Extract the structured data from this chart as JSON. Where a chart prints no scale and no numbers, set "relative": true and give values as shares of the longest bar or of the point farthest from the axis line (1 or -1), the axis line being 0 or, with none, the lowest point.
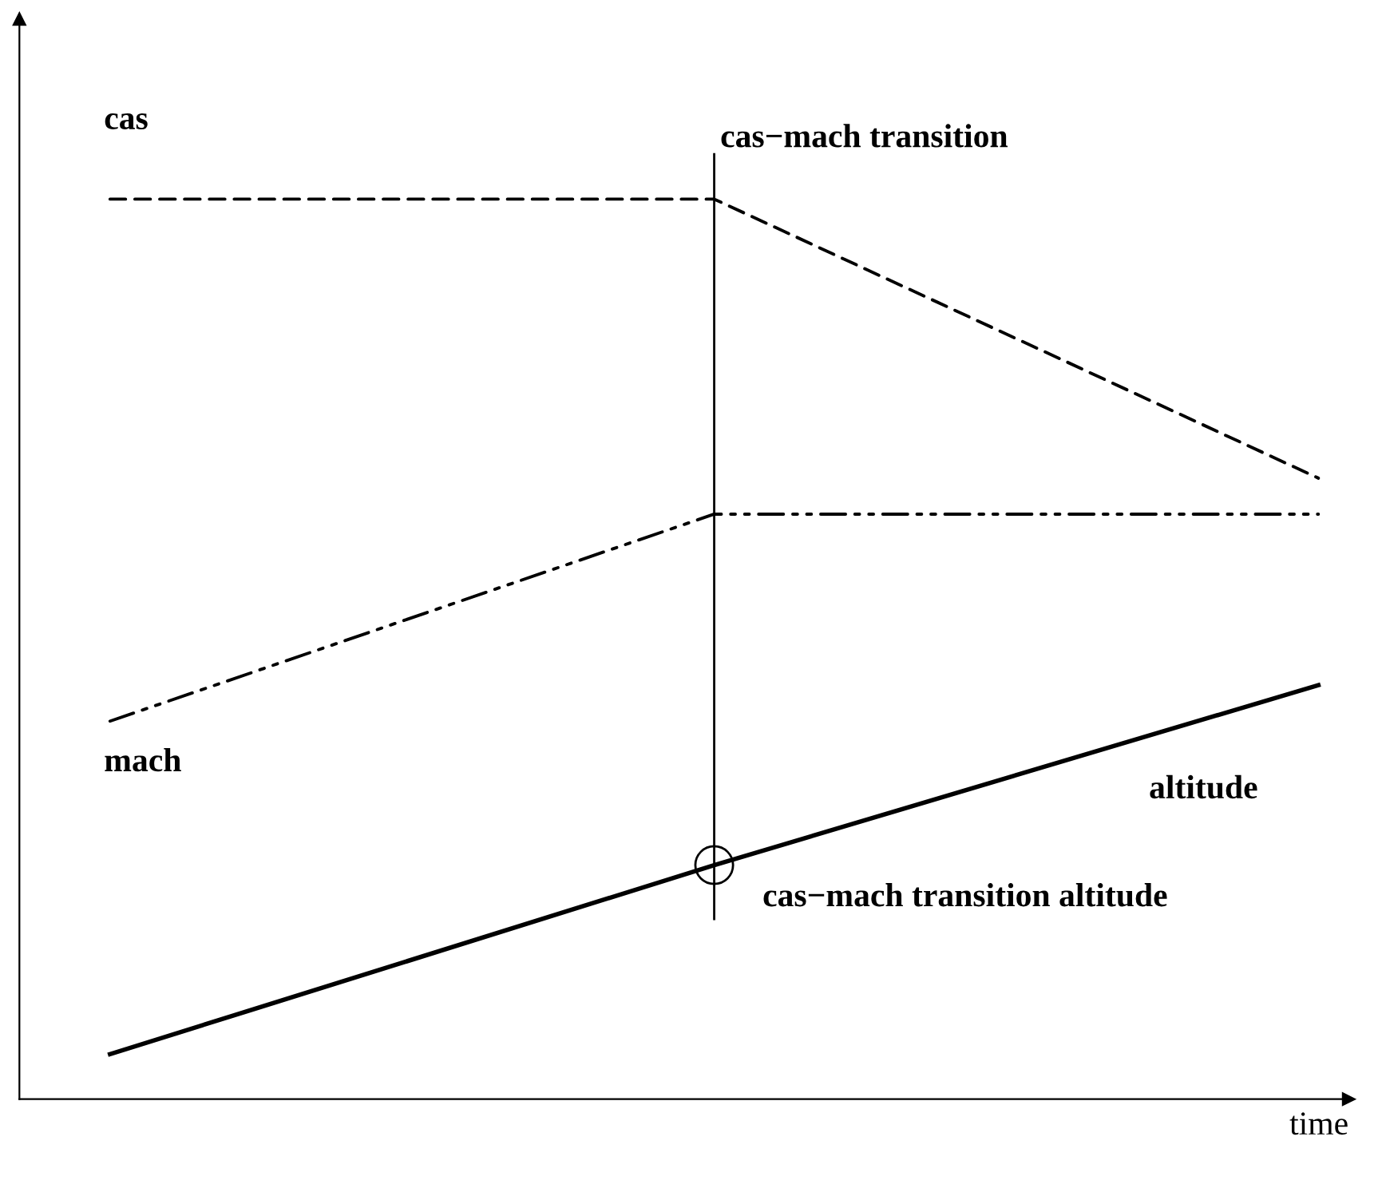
{
  "chart_data": {
    "type": "line",
    "relative": true,
    "xlabel": "time",
    "categories": [
      null,
      null,
      null
    ],
    "series": [
      {
        "name": "cas",
        "color": "#000000",
        "line_style": "dashed",
        "values": [
          1,
          1,
          0.69
        ]
      },
      {
        "name": "mach",
        "color": "#000000",
        "line_style": "dashdotdot",
        "values": [
          0.42,
          0.65,
          0.65
        ]
      },
      {
        "name": "altitude",
        "color": "#000000",
        "line_style": "solid",
        "values": [
          0.05,
          0.26,
          0.46
        ]
      }
    ],
    "annotations": [
      "cas−mach transition",
      "cas−mach transition altitude"
    ]
  }
}
